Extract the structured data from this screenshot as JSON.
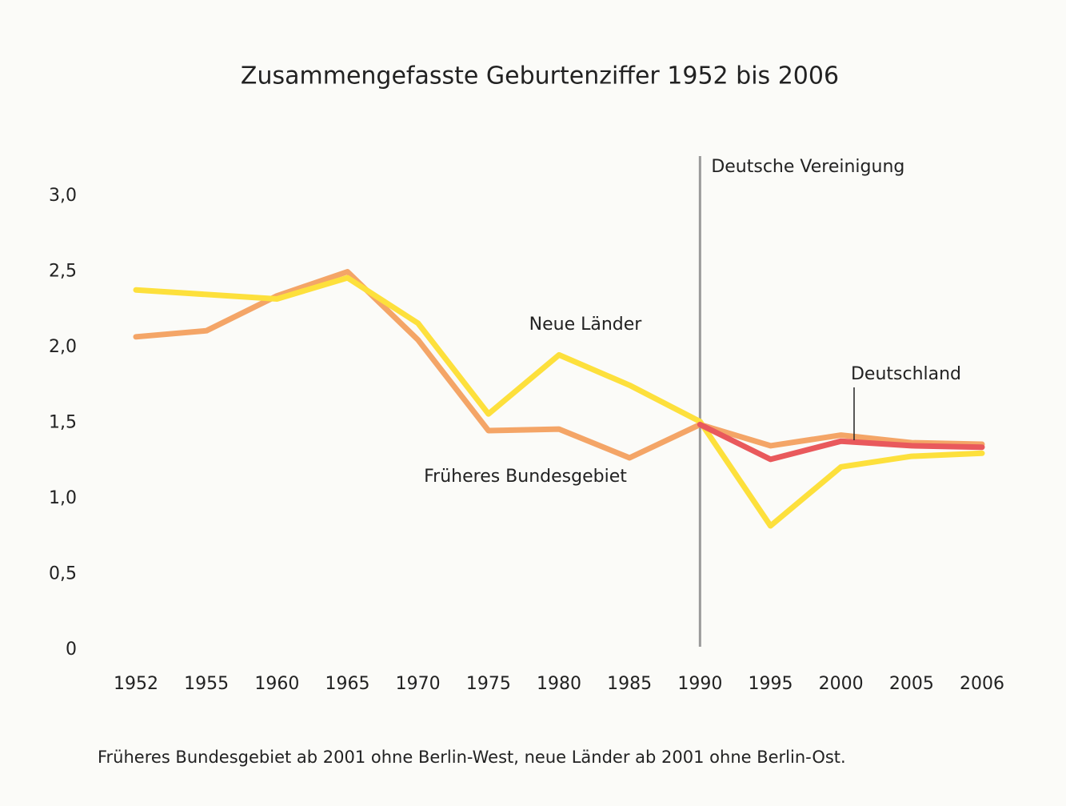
{
  "chart_data": {
    "type": "line",
    "title": "Zusammengefasste Geburtenziffer 1952 bis 2006",
    "categories": [
      "1952",
      "1955",
      "1960",
      "1965",
      "1970",
      "1975",
      "1980",
      "1985",
      "1990",
      "1995",
      "2000",
      "2005",
      "2006"
    ],
    "series": [
      {
        "name": "Früheres Bundesgebiet",
        "color": "#f4a567",
        "values": [
          2.07,
          2.11,
          2.34,
          2.5,
          2.05,
          1.45,
          1.46,
          1.27,
          1.49,
          1.35,
          1.42,
          1.37,
          1.36
        ]
      },
      {
        "name": "Neue Länder",
        "color": "#fde03c",
        "values": [
          2.38,
          2.35,
          2.32,
          2.46,
          2.16,
          1.56,
          1.95,
          1.75,
          1.51,
          0.82,
          1.21,
          1.28,
          1.3
        ]
      },
      {
        "name": "Deutschland",
        "color": "#e9595c",
        "values": [
          null,
          null,
          null,
          null,
          null,
          null,
          null,
          null,
          1.49,
          1.26,
          1.38,
          1.35,
          1.34
        ]
      }
    ],
    "ylim": [
      0,
      3
    ],
    "yticks": [
      0,
      {
        "value": 0.5,
        "label": "0,5"
      },
      {
        "value": 1,
        "label": "1,0"
      },
      {
        "value": 1.5,
        "label": "1,5"
      },
      {
        "value": 2,
        "label": "2,0"
      },
      {
        "value": 2.5,
        "label": "2,5"
      },
      {
        "value": 3,
        "label": "3,0"
      }
    ],
    "grid": false,
    "annotations": [
      {
        "text": "Deutsche Vereinigung",
        "x": "1990"
      }
    ],
    "footnote": "Früheres Bundesgebiet ab 2001 ohne Berlin-West, neue Länder ab 2001 ohne Berlin-Ost."
  }
}
